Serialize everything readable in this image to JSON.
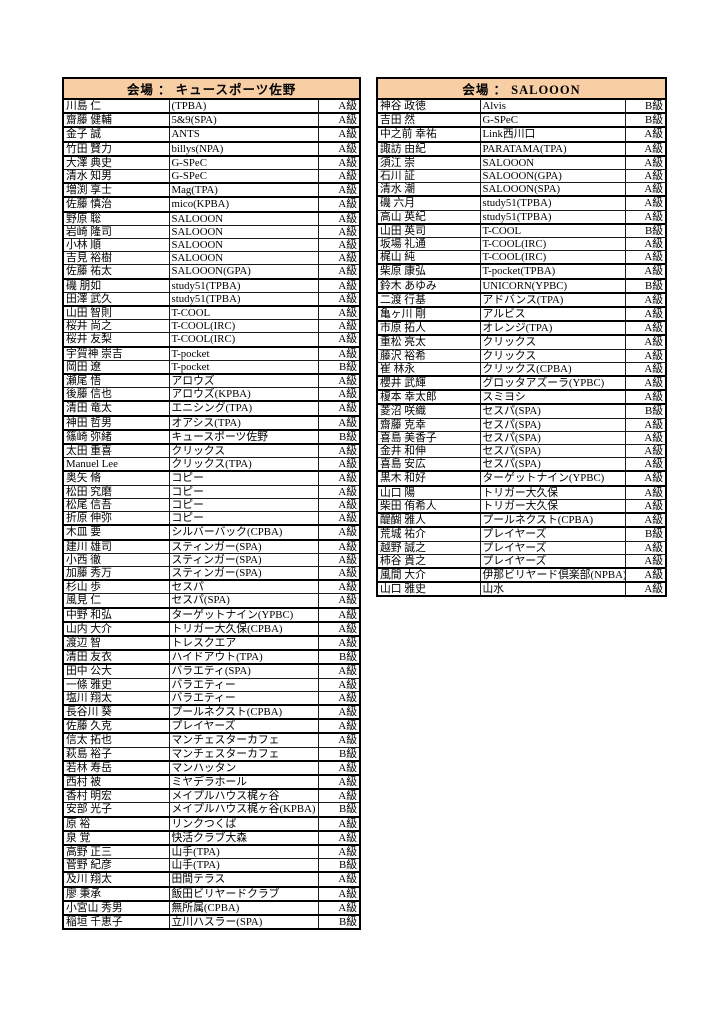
{
  "colors": {
    "header_bg": "#F8CFA4",
    "grid": "#1a1a1a",
    "heavy": "#000000"
  },
  "tables": [
    {
      "title": "会場 ： キュースポーツ佐野",
      "rows": [
        {
          "name": "川島 仁",
          "club": "(TPBA)",
          "grade": "A級"
        },
        {
          "name": "齋藤 健輔",
          "club": "5&9(SPA)",
          "grade": "A級"
        },
        {
          "name": "金子 誠",
          "club": "ANTS",
          "grade": "A級"
        },
        {
          "name": "竹田 賢力",
          "club": "billys(NPA)",
          "grade": "A級"
        },
        {
          "name": "大澤 典史",
          "club": "G-SPeC",
          "grade": "A級"
        },
        {
          "name": "清水 知男",
          "club": "G-SPeC",
          "grade": "A級"
        },
        {
          "name": "増渕 享士",
          "club": "Mag(TPA)",
          "grade": "A級"
        },
        {
          "name": "佐藤 慎治",
          "club": "mico(KPBA)",
          "grade": "A級"
        },
        {
          "name": "野原 聡",
          "club": "SALOOON",
          "grade": "A級"
        },
        {
          "name": "岩崎 隆司",
          "club": "SALOOON",
          "grade": "A級"
        },
        {
          "name": "小林 順",
          "club": "SALOOON",
          "grade": "A級"
        },
        {
          "name": "吉見 裕樹",
          "club": "SALOOON",
          "grade": "A級"
        },
        {
          "name": "佐藤 祐太",
          "club": "SALOOON(GPA)",
          "grade": "A級"
        },
        {
          "name": "磯 朋如",
          "club": "study51(TPBA)",
          "grade": "A級"
        },
        {
          "name": "田澤 武久",
          "club": "study51(TPBA)",
          "grade": "A級"
        },
        {
          "name": "山田 智則",
          "club": "T-COOL",
          "grade": "A級"
        },
        {
          "name": "桜井 尚之",
          "club": "T-COOL(IRC)",
          "grade": "A級"
        },
        {
          "name": "桜井 友梨",
          "club": "T-COOL(IRC)",
          "grade": "A級"
        },
        {
          "name": "宇賀神 崇吉",
          "club": "T-pocket",
          "grade": "A級"
        },
        {
          "name": "岡田 遼",
          "club": "T-pocket",
          "grade": "B級"
        },
        {
          "name": "瀬尾 悟",
          "club": "アロウズ",
          "grade": "A級"
        },
        {
          "name": "後藤 信也",
          "club": "アロウズ(KPBA)",
          "grade": "A級"
        },
        {
          "name": "清田 竜太",
          "club": "エニシング(TPA)",
          "grade": "A級"
        },
        {
          "name": "神田 哲男",
          "club": "オアシス(TPA)",
          "grade": "A級"
        },
        {
          "name": "篠崎 弥緒",
          "club": "キュースポーツ佐野",
          "grade": "B級"
        },
        {
          "name": "太田 重喜",
          "club": "クリックス",
          "grade": "A級"
        },
        {
          "name": "Manuel Lee",
          "club": "クリックス(TPA)",
          "grade": "A級"
        },
        {
          "name": "奥矢 脩",
          "club": "コピー",
          "grade": "A級"
        },
        {
          "name": "松田 究磨",
          "club": "コピー",
          "grade": "A級"
        },
        {
          "name": "松尾 信吾",
          "club": "コピー",
          "grade": "A級"
        },
        {
          "name": "折原 伸弥",
          "club": "コピー",
          "grade": "A級"
        },
        {
          "name": "木皿 要",
          "club": "シルバーバック(CPBA)",
          "grade": "A級"
        },
        {
          "name": "建川 雄司",
          "club": "スティンガー(SPA)",
          "grade": "A級"
        },
        {
          "name": "小西 徹",
          "club": "スティンガー(SPA)",
          "grade": "A級"
        },
        {
          "name": "加藤 秀万",
          "club": "スティンガー(SPA)",
          "grade": "A級"
        },
        {
          "name": "杉山 歩",
          "club": "セスパ",
          "grade": "A級"
        },
        {
          "name": "風見 仁",
          "club": "セスパ(SPA)",
          "grade": "A級"
        },
        {
          "name": "中野 和弘",
          "club": "ターゲットナイン(YPBC)",
          "grade": "A級"
        },
        {
          "name": "山内 大介",
          "club": "トリガー大久保(CPBA)",
          "grade": "A級"
        },
        {
          "name": "渡辺 智",
          "club": "トレスクエア",
          "grade": "A級"
        },
        {
          "name": "清田 友衣",
          "club": "ハイドアウト(TPA)",
          "grade": "B級"
        },
        {
          "name": "田中 公大",
          "club": "バラエティ(SPA)",
          "grade": "A級"
        },
        {
          "name": "一條 雅史",
          "club": "バラエティー",
          "grade": "A級"
        },
        {
          "name": "塩川 翔太",
          "club": "バラエティー",
          "grade": "A級"
        },
        {
          "name": "長谷川 葵",
          "club": "プールネクスト(CPBA)",
          "grade": "A級"
        },
        {
          "name": "佐藤 久克",
          "club": "プレイヤーズ",
          "grade": "A級"
        },
        {
          "name": "信太 拓也",
          "club": "マンチェスターカフェ",
          "grade": "A級"
        },
        {
          "name": "萩島 裕子",
          "club": "マンチェスターカフェ",
          "grade": "B級"
        },
        {
          "name": "若林 寿岳",
          "club": "マンハッタン",
          "grade": "A級"
        },
        {
          "name": "西村 被",
          "club": "ミヤデラホール",
          "grade": "A級"
        },
        {
          "name": "香村 明宏",
          "club": "メイプルハウス梶ヶ谷",
          "grade": "A級"
        },
        {
          "name": "安部 光子",
          "club": "メイプルハウス梶ヶ谷(KPBA)",
          "grade": "B級"
        },
        {
          "name": "原 裕",
          "club": "リンクつくば",
          "grade": "A級"
        },
        {
          "name": "泉 覚",
          "club": "快活クラブ大森",
          "grade": "A級"
        },
        {
          "name": "高野 正三",
          "club": "山手(TPA)",
          "grade": "A級"
        },
        {
          "name": "菅野 紀彦",
          "club": "山手(TPA)",
          "grade": "B級"
        },
        {
          "name": "及川 翔太",
          "club": "田間テラス",
          "grade": "A級"
        },
        {
          "name": "廖 秉承",
          "club": "飯田ビリヤードクラブ",
          "grade": "A級"
        },
        {
          "name": "小宮山 秀男",
          "club": "無所属(CPBA)",
          "grade": "A級"
        },
        {
          "name": "稲垣 千恵子",
          "club": "立川ハスラー(SPA)",
          "grade": "B級"
        }
      ]
    },
    {
      "title": "会場 ： SALOOON",
      "rows": [
        {
          "name": "神谷 政徳",
          "club": "Alvis",
          "grade": "B級"
        },
        {
          "name": "吉田 然",
          "club": "G-SPeC",
          "grade": "B級"
        },
        {
          "name": "中之前 幸祐",
          "club": "Link西川口",
          "grade": "A級"
        },
        {
          "name": "諏訪 由紀",
          "club": "PARATAMA(TPA)",
          "grade": "A級"
        },
        {
          "name": "須江 崇",
          "club": "SALOOON",
          "grade": "A級"
        },
        {
          "name": "石川 証",
          "club": "SALOOON(GPA)",
          "grade": "A級"
        },
        {
          "name": "清水 潮",
          "club": "SALOOON(SPA)",
          "grade": "A級"
        },
        {
          "name": "磯 六月",
          "club": "study51(TPBA)",
          "grade": "A級"
        },
        {
          "name": "高山 英紀",
          "club": "study51(TPBA)",
          "grade": "A級"
        },
        {
          "name": "山田 英司",
          "club": "T-COOL",
          "grade": "B級"
        },
        {
          "name": "坂場 礼通",
          "club": "T-COOL(IRC)",
          "grade": "A級"
        },
        {
          "name": "梶山 純",
          "club": "T-COOL(IRC)",
          "grade": "A級"
        },
        {
          "name": "柴原 康弘",
          "club": "T-pocket(TPBA)",
          "grade": "A級"
        },
        {
          "name": "鈴木 あゆみ",
          "club": "UNICORN(YPBC)",
          "grade": "B級"
        },
        {
          "name": "二渡 行基",
          "club": "アドバンス(TPA)",
          "grade": "A級"
        },
        {
          "name": "亀ヶ川 剛",
          "club": "アルビス",
          "grade": "A級"
        },
        {
          "name": "市原 拓人",
          "club": "オレンジ(TPA)",
          "grade": "A級"
        },
        {
          "name": "重松 亮太",
          "club": "クリックス",
          "grade": "A級"
        },
        {
          "name": "藤沢 裕希",
          "club": "クリックス",
          "grade": "A級"
        },
        {
          "name": "崔 林永",
          "club": "クリックス(CPBA)",
          "grade": "A級"
        },
        {
          "name": "櫻井 武輝",
          "club": "グロッタアズーラ(YPBC)",
          "grade": "A級"
        },
        {
          "name": "榎本 幸太郎",
          "club": "スミヨシ",
          "grade": "A級"
        },
        {
          "name": "菱沼 咲織",
          "club": "セスパ(SPA)",
          "grade": "B級"
        },
        {
          "name": "齋藤 克幸",
          "club": "セスパ(SPA)",
          "grade": "A級"
        },
        {
          "name": "喜島 美香子",
          "club": "セスパ(SPA)",
          "grade": "A級"
        },
        {
          "name": "金井 和伸",
          "club": "セスパ(SPA)",
          "grade": "A級"
        },
        {
          "name": "喜島 安広",
          "club": "セスパ(SPA)",
          "grade": "A級"
        },
        {
          "name": "黒木 和好",
          "club": "ターゲットナイン(YPBC)",
          "grade": "A級"
        },
        {
          "name": "山口 陽",
          "club": "トリガー大久保",
          "grade": "A級"
        },
        {
          "name": "柴田 侑希人",
          "club": "トリガー大久保",
          "grade": "A級"
        },
        {
          "name": "醍醐 雅人",
          "club": "プールネクスト(CPBA)",
          "grade": "A級"
        },
        {
          "name": "荒城 祐介",
          "club": "プレイヤーズ",
          "grade": "B級"
        },
        {
          "name": "越野 誠之",
          "club": "プレイヤーズ",
          "grade": "A級"
        },
        {
          "name": "柿谷 貴之",
          "club": "プレイヤーズ",
          "grade": "A級"
        },
        {
          "name": "風間 大介",
          "club": "伊那ビリヤード倶楽部(NPBA)",
          "grade": "A級"
        },
        {
          "name": "山口 雅史",
          "club": "山水",
          "grade": "A級"
        }
      ]
    }
  ]
}
